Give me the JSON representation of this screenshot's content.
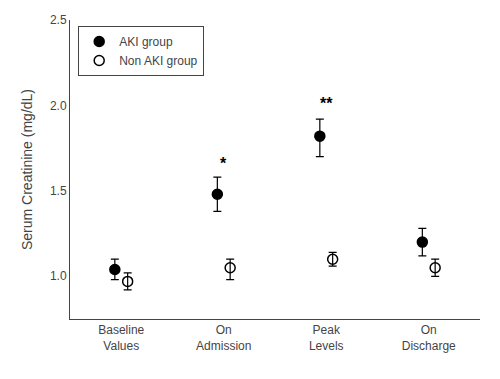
{
  "chart_data": {
    "type": "scatter",
    "categories": [
      "Baseline\nValues",
      "On\nAdmission",
      "Peak\nLevels",
      "On\nDischarge"
    ],
    "series": [
      {
        "name": "AKI group",
        "color": "#000000",
        "marker": "circle",
        "values": [
          1.04,
          1.48,
          1.82,
          1.2
        ],
        "sem_upper": [
          0.06,
          0.1,
          0.1,
          0.08
        ],
        "sem_lower": [
          0.06,
          0.1,
          0.12,
          0.08
        ]
      },
      {
        "name": "Non AKI group",
        "color": "#000000",
        "marker": "circle-open",
        "values": [
          0.97,
          1.05,
          1.1,
          1.05
        ],
        "sem_upper": [
          0.05,
          0.05,
          0.04,
          0.05
        ],
        "sem_lower": [
          0.05,
          0.07,
          0.04,
          0.05
        ]
      }
    ],
    "annotations": [
      {
        "category": "On\nAdmission",
        "y": 1.6,
        "text": "*"
      },
      {
        "category": "Peak\nLevels",
        "y": 1.95,
        "text": "**"
      }
    ],
    "ylabel": "Serum Creatinine (mg/dL)",
    "ylim": [
      0.75,
      2.5
    ],
    "yticks": [
      {
        "value": 1.0,
        "label": "1.0"
      },
      {
        "value": 1.5,
        "label": "1.5"
      },
      {
        "value": 2.0,
        "label": "2.0"
      },
      {
        "value": 2.5,
        "label": "2.5"
      }
    ],
    "grid": false,
    "legend": "upper left"
  }
}
